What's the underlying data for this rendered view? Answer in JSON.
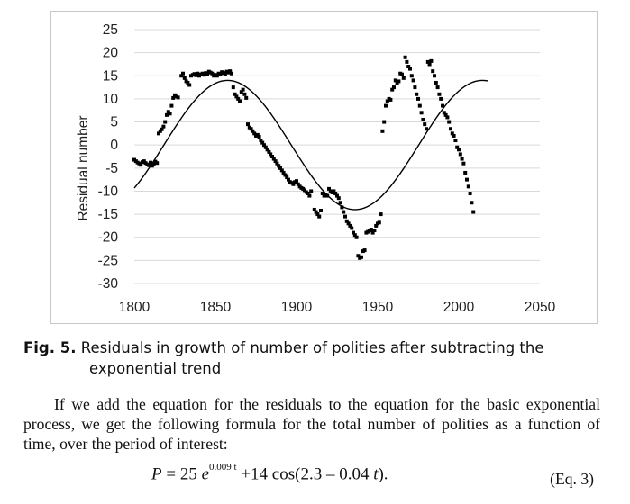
{
  "chart_data": {
    "type": "scatter",
    "title": "",
    "xlabel": "",
    "ylabel": "Residual number",
    "xlim": [
      1800,
      2050
    ],
    "ylim": [
      -30,
      25
    ],
    "x_ticks": [
      "1800",
      "1850",
      "1900",
      "1950",
      "2000",
      "2050"
    ],
    "y_ticks": [
      "25",
      "20",
      "15",
      "10",
      "5",
      "0",
      "-5",
      "-10",
      "-15",
      "-20",
      "-25",
      "-30"
    ],
    "grid": "horizontal",
    "legend": "none",
    "series": [
      {
        "style": "markers",
        "points": [
          [
            1800,
            -3.2
          ],
          [
            1801,
            -3.5
          ],
          [
            1802,
            -3.8
          ],
          [
            1803,
            -4.0
          ],
          [
            1804,
            -4.3
          ],
          [
            1805,
            -3.7
          ],
          [
            1806,
            -3.5
          ],
          [
            1807,
            -3.9
          ],
          [
            1808,
            -4.2
          ],
          [
            1809,
            -4.4
          ],
          [
            1810,
            -3.8
          ],
          [
            1811,
            -4.5
          ],
          [
            1812,
            -4.1
          ],
          [
            1813,
            -3.6
          ],
          [
            1814,
            -3.9
          ],
          [
            1815,
            2.5
          ],
          [
            1816,
            3.0
          ],
          [
            1817,
            3.4
          ],
          [
            1818,
            4.0
          ],
          [
            1819,
            5.0
          ],
          [
            1820,
            6.5
          ],
          [
            1821,
            7.2
          ],
          [
            1822,
            6.8
          ],
          [
            1823,
            8.5
          ],
          [
            1824,
            10.2
          ],
          [
            1825,
            10.8
          ],
          [
            1826,
            10.5
          ],
          [
            1827,
            10.3
          ],
          [
            1829,
            15.0
          ],
          [
            1830,
            15.5
          ],
          [
            1831,
            14.5
          ],
          [
            1832,
            13.8
          ],
          [
            1833,
            13.5
          ],
          [
            1834,
            13.0
          ],
          [
            1835,
            15.0
          ],
          [
            1836,
            15.2
          ],
          [
            1837,
            15.4
          ],
          [
            1838,
            15.1
          ],
          [
            1839,
            15.5
          ],
          [
            1840,
            15.0
          ],
          [
            1841,
            15.3
          ],
          [
            1842,
            15.5
          ],
          [
            1843,
            15.2
          ],
          [
            1844,
            15.6
          ],
          [
            1845,
            15.4
          ],
          [
            1846,
            15.9
          ],
          [
            1847,
            15.7
          ],
          [
            1848,
            15.5
          ],
          [
            1849,
            15.0
          ],
          [
            1850,
            15.2
          ],
          [
            1851,
            15.0
          ],
          [
            1852,
            15.5
          ],
          [
            1853,
            15.3
          ],
          [
            1854,
            15.8
          ],
          [
            1855,
            15.6
          ],
          [
            1856,
            15.4
          ],
          [
            1857,
            15.9
          ],
          [
            1858,
            15.7
          ],
          [
            1859,
            16.0
          ],
          [
            1860,
            15.5
          ],
          [
            1861,
            12.5
          ],
          [
            1862,
            11.0
          ],
          [
            1863,
            10.5
          ],
          [
            1864,
            10.0
          ],
          [
            1865,
            9.5
          ],
          [
            1866,
            11.5
          ],
          [
            1867,
            12.0
          ],
          [
            1868,
            11.0
          ],
          [
            1869,
            10.2
          ],
          [
            1870,
            4.5
          ],
          [
            1871,
            3.8
          ],
          [
            1872,
            3.5
          ],
          [
            1873,
            3.0
          ],
          [
            1874,
            2.5
          ],
          [
            1875,
            2.0
          ],
          [
            1876,
            2.2
          ],
          [
            1877,
            1.8
          ],
          [
            1878,
            1.0
          ],
          [
            1879,
            0.5
          ],
          [
            1880,
            0.0
          ],
          [
            1881,
            -0.5
          ],
          [
            1882,
            -1.0
          ],
          [
            1883,
            -1.5
          ],
          [
            1884,
            -2.0
          ],
          [
            1885,
            -2.5
          ],
          [
            1886,
            -3.0
          ],
          [
            1887,
            -3.5
          ],
          [
            1888,
            -4.0
          ],
          [
            1889,
            -4.5
          ],
          [
            1890,
            -5.0
          ],
          [
            1891,
            -5.5
          ],
          [
            1892,
            -6.0
          ],
          [
            1893,
            -6.5
          ],
          [
            1894,
            -7.0
          ],
          [
            1895,
            -7.5
          ],
          [
            1896,
            -8.0
          ],
          [
            1897,
            -8.2
          ],
          [
            1898,
            -8.5
          ],
          [
            1899,
            -8.0
          ],
          [
            1900,
            -7.8
          ],
          [
            1901,
            -8.5
          ],
          [
            1902,
            -9.0
          ],
          [
            1903,
            -9.3
          ],
          [
            1904,
            -9.5
          ],
          [
            1905,
            -9.8
          ],
          [
            1906,
            -10.2
          ],
          [
            1907,
            -10.5
          ],
          [
            1908,
            -11.0
          ],
          [
            1909,
            -10.0
          ],
          [
            1911,
            -14.0
          ],
          [
            1912,
            -14.5
          ],
          [
            1913,
            -15.0
          ],
          [
            1914,
            -15.5
          ],
          [
            1915,
            -14.2
          ],
          [
            1916,
            -10.5
          ],
          [
            1917,
            -11.0
          ],
          [
            1918,
            -10.8
          ],
          [
            1919,
            -11.0
          ],
          [
            1920,
            -9.5
          ],
          [
            1921,
            -10.0
          ],
          [
            1922,
            -10.3
          ],
          [
            1923,
            -10.0
          ],
          [
            1924,
            -10.5
          ],
          [
            1925,
            -11.0
          ],
          [
            1926,
            -11.5
          ],
          [
            1927,
            -12.5
          ],
          [
            1928,
            -13.5
          ],
          [
            1929,
            -14.5
          ],
          [
            1930,
            -15.5
          ],
          [
            1931,
            -16.5
          ],
          [
            1932,
            -17.0
          ],
          [
            1933,
            -17.5
          ],
          [
            1934,
            -18.0
          ],
          [
            1935,
            -19.0
          ],
          [
            1936,
            -19.5
          ],
          [
            1937,
            -20.0
          ],
          [
            1938,
            -24.0
          ],
          [
            1939,
            -24.5
          ],
          [
            1940,
            -24.3
          ],
          [
            1941,
            -23.0
          ],
          [
            1942,
            -22.8
          ],
          [
            1943,
            -19.0
          ],
          [
            1944,
            -18.8
          ],
          [
            1945,
            -18.5
          ],
          [
            1946,
            -18.3
          ],
          [
            1947,
            -19.0
          ],
          [
            1948,
            -18.5
          ],
          [
            1949,
            -17.5
          ],
          [
            1950,
            -17.0
          ],
          [
            1951,
            -16.8
          ],
          [
            1952,
            -15.0
          ],
          [
            1953,
            3.0
          ],
          [
            1954,
            5.0
          ],
          [
            1955,
            8.5
          ],
          [
            1956,
            9.5
          ],
          [
            1957,
            10.0
          ],
          [
            1958,
            9.8
          ],
          [
            1959,
            12.0
          ],
          [
            1960,
            12.5
          ],
          [
            1961,
            14.0
          ],
          [
            1962,
            13.5
          ],
          [
            1963,
            13.8
          ],
          [
            1964,
            15.5
          ],
          [
            1965,
            15.3
          ],
          [
            1966,
            14.5
          ],
          [
            1967,
            19.0
          ],
          [
            1968,
            18.0
          ],
          [
            1969,
            17.0
          ],
          [
            1970,
            16.5
          ],
          [
            1971,
            15.0
          ],
          [
            1972,
            14.0
          ],
          [
            1973,
            12.5
          ],
          [
            1974,
            11.0
          ],
          [
            1975,
            10.0
          ],
          [
            1976,
            8.5
          ],
          [
            1977,
            7.0
          ],
          [
            1978,
            5.5
          ],
          [
            1979,
            4.5
          ],
          [
            1980,
            3.5
          ],
          [
            1981,
            18.0
          ],
          [
            1982,
            17.5
          ],
          [
            1983,
            18.2
          ],
          [
            1984,
            16.0
          ],
          [
            1985,
            15.0
          ],
          [
            1986,
            13.5
          ],
          [
            1987,
            12.5
          ],
          [
            1988,
            11.0
          ],
          [
            1989,
            10.0
          ],
          [
            1990,
            8.5
          ],
          [
            1991,
            7.0
          ],
          [
            1992,
            6.5
          ],
          [
            1993,
            6.0
          ],
          [
            1994,
            5.0
          ],
          [
            1995,
            3.5
          ],
          [
            1996,
            2.5
          ],
          [
            1997,
            2.0
          ],
          [
            1998,
            1.0
          ],
          [
            1999,
            -0.5
          ],
          [
            2000,
            -1.0
          ],
          [
            2001,
            -2.0
          ],
          [
            2002,
            -3.0
          ],
          [
            2003,
            -4.0
          ],
          [
            2004,
            -6.0
          ],
          [
            2005,
            -7.5
          ],
          [
            2006,
            -9.0
          ],
          [
            2007,
            -10.5
          ],
          [
            2008,
            -12.5
          ],
          [
            2009,
            -14.5
          ]
        ]
      },
      {
        "style": "line",
        "function": "14*cos(2.3 - 0.04*(t - 1800))",
        "x_range": [
          1800,
          2018
        ]
      }
    ]
  },
  "caption": {
    "label": "Fig. 5.",
    "text_line1": "Residuals in growth of number of polities after subtracting the",
    "text_line2": "exponential trend"
  },
  "paragraph": "If we add the equation for the residuals to the equation for the basic exponential process, we get the following formula for the total number of polities as a function of time, over the period of interest:",
  "equation": {
    "lhs": "P",
    "eq": " = 25 ",
    "e": "e",
    "exp": "0.009 t",
    "rest_a": " +14 cos(2.3 – 0.04 ",
    "t": "t",
    "rest_b": ").",
    "number": "(Eq. 3)"
  }
}
